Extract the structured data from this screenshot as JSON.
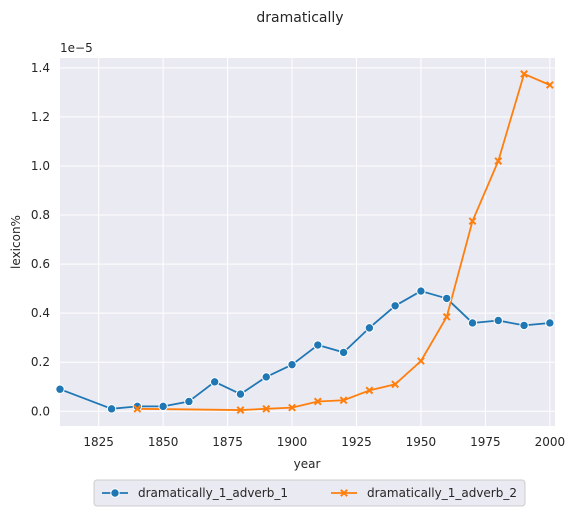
{
  "chart_data": {
    "type": "line",
    "title": "dramatically",
    "xlabel": "year",
    "ylabel": "lexicon%",
    "y_offset_text": "1e−5",
    "xlim": [
      1810,
      2002
    ],
    "ylim": [
      -0.06,
      1.44
    ],
    "x_ticks": [
      1825,
      1850,
      1875,
      1900,
      1925,
      1950,
      1975,
      2000
    ],
    "y_ticks": [
      0.0,
      0.2,
      0.4,
      0.6,
      0.8,
      1.0,
      1.2,
      1.4
    ],
    "y_tick_labels": [
      "0.0",
      "0.2",
      "0.4",
      "0.6",
      "0.8",
      "1.0",
      "1.2",
      "1.4"
    ],
    "grid": true,
    "legend_placement": "bottom-center, below axes",
    "series": [
      {
        "name": "dramatically_1_adverb_1",
        "color": "#1f77b4",
        "marker": "circle",
        "x": [
          1810,
          1830,
          1840,
          1850,
          1860,
          1870,
          1880,
          1890,
          1900,
          1910,
          1920,
          1930,
          1940,
          1950,
          1960,
          1970,
          1980,
          1990,
          2000
        ],
        "y": [
          0.09,
          0.01,
          0.02,
          0.02,
          0.04,
          0.12,
          0.07,
          0.14,
          0.19,
          0.27,
          0.24,
          0.34,
          0.43,
          0.49,
          0.46,
          0.36,
          0.37,
          0.35,
          0.36
        ]
      },
      {
        "name": "dramatically_1_adverb_2",
        "color": "#ff7f0e",
        "marker": "x",
        "x": [
          1840,
          1880,
          1890,
          1900,
          1910,
          1920,
          1930,
          1940,
          1950,
          1960,
          1970,
          1980,
          1990,
          2000
        ],
        "y": [
          0.01,
          0.005,
          0.01,
          0.015,
          0.04,
          0.045,
          0.085,
          0.11,
          0.205,
          0.385,
          0.775,
          1.02,
          1.375,
          1.33
        ]
      }
    ]
  }
}
